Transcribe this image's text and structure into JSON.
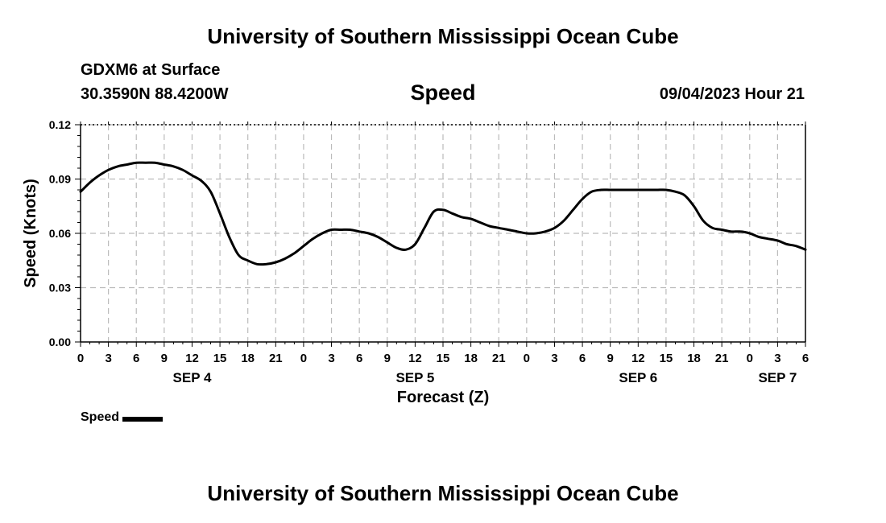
{
  "header": {
    "top_title": "University of Southern Mississippi Ocean Cube",
    "station": "GDXM6 at Surface",
    "coords": "30.3590N  88.4200W",
    "chart_title": "Speed",
    "run_time": "09/04/2023 Hour 21"
  },
  "footer": {
    "bottom_title": "University of Southern Mississippi Ocean Cube"
  },
  "legend": {
    "label": "Speed"
  },
  "colors": {
    "line": "#000000",
    "grid": "#bbbbbb"
  },
  "chart_data": {
    "type": "line",
    "title": "Speed",
    "xlabel": "Forecast (Z)",
    "ylabel": "Speed (Knots)",
    "ylim": [
      0,
      0.12
    ],
    "xlim_hours": [
      0,
      78
    ],
    "grid": true,
    "y_ticks": [
      "0.00",
      "0.03",
      "0.06",
      "0.09",
      "0.12"
    ],
    "x_ticks": [
      "0",
      "3",
      "6",
      "9",
      "12",
      "15",
      "18",
      "21",
      "0",
      "3",
      "6",
      "9",
      "12",
      "15",
      "18",
      "21",
      "0",
      "3",
      "6",
      "9",
      "12",
      "15",
      "18",
      "21",
      "0",
      "3",
      "6"
    ],
    "date_labels": [
      {
        "label": "SEP 4",
        "hour": 12
      },
      {
        "label": "SEP 5",
        "hour": 36
      },
      {
        "label": "SEP 6",
        "hour": 60
      },
      {
        "label": "SEP 7",
        "hour": 75
      }
    ],
    "series": [
      {
        "name": "Speed",
        "x": [
          0,
          1,
          2,
          3,
          4,
          5,
          6,
          7,
          8,
          9,
          10,
          11,
          12,
          13,
          14,
          15,
          16,
          17,
          18,
          19,
          20,
          21,
          22,
          23,
          24,
          25,
          26,
          27,
          28,
          29,
          30,
          31,
          32,
          33,
          34,
          35,
          36,
          37,
          38,
          39,
          40,
          41,
          42,
          43,
          44,
          45,
          46,
          47,
          48,
          49,
          50,
          51,
          52,
          53,
          54,
          55,
          56,
          57,
          58,
          59,
          60,
          61,
          62,
          63,
          64,
          65,
          66,
          67,
          68,
          69,
          70,
          71,
          72,
          73,
          74,
          75,
          76,
          77,
          78
        ],
        "values": [
          0.083,
          0.088,
          0.092,
          0.095,
          0.097,
          0.098,
          0.099,
          0.099,
          0.099,
          0.098,
          0.097,
          0.095,
          0.092,
          0.089,
          0.083,
          0.071,
          0.058,
          0.048,
          0.045,
          0.043,
          0.043,
          0.044,
          0.046,
          0.049,
          0.053,
          0.057,
          0.06,
          0.062,
          0.062,
          0.062,
          0.061,
          0.06,
          0.058,
          0.055,
          0.052,
          0.051,
          0.054,
          0.063,
          0.072,
          0.073,
          0.071,
          0.069,
          0.068,
          0.066,
          0.064,
          0.063,
          0.062,
          0.061,
          0.06,
          0.06,
          0.061,
          0.063,
          0.067,
          0.073,
          0.079,
          0.083,
          0.084,
          0.084,
          0.084,
          0.084,
          0.084,
          0.084,
          0.084,
          0.084,
          0.083,
          0.081,
          0.075,
          0.067,
          0.063,
          0.062,
          0.061,
          0.061,
          0.06,
          0.058,
          0.057,
          0.056,
          0.054,
          0.053,
          0.051
        ]
      }
    ]
  }
}
